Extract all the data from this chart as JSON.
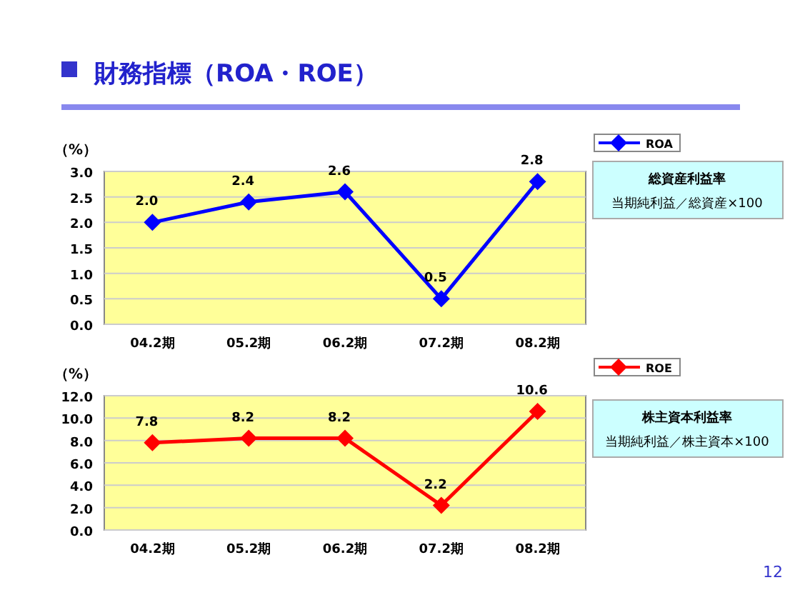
{
  "chart_data": [
    {
      "type": "line",
      "title": "財務指標（ROA・ROE）",
      "ylabel": "（%）",
      "categories": [
        "04.2期",
        "05.2期",
        "06.2期",
        "07.2期",
        "08.2期"
      ],
      "series": [
        {
          "name": "ROA",
          "color": "#0000ff",
          "values": [
            2.0,
            2.4,
            2.6,
            0.5,
            2.8
          ],
          "value_labels": [
            "2.0",
            "2.4",
            "2.6",
            "0.5",
            "2.8"
          ]
        }
      ],
      "ylim": [
        0,
        3
      ],
      "yticks": [
        {
          "value": 0,
          "label": "0.0"
        },
        {
          "value": 0.5,
          "label": "0.5"
        },
        {
          "value": 1,
          "label": "1.0"
        },
        {
          "value": 1.5,
          "label": "1.5"
        },
        {
          "value": 2,
          "label": "2.0"
        },
        {
          "value": 2.5,
          "label": "2.5"
        },
        {
          "value": 3,
          "label": "3.0"
        }
      ],
      "grid": "y",
      "legend": "top right",
      "marker": "diamond",
      "line_style": "solid",
      "annotations": [
        "総資産利益率",
        "当期純利益／総資産×100"
      ]
    },
    {
      "type": "line",
      "ylabel": "（%）",
      "categories": [
        "04.2期",
        "05.2期",
        "06.2期",
        "07.2期",
        "08.2期"
      ],
      "series": [
        {
          "name": "ROE",
          "color": "#ff0000",
          "values": [
            7.8,
            8.2,
            8.2,
            2.2,
            10.6
          ],
          "value_labels": [
            "7.8",
            "8.2",
            "8.2",
            "2.2",
            "10.6"
          ]
        }
      ],
      "ylim": [
        0,
        12
      ],
      "yticks": [
        {
          "value": 0,
          "label": "0.0"
        },
        {
          "value": 2,
          "label": "2.0"
        },
        {
          "value": 4,
          "label": "4.0"
        },
        {
          "value": 6,
          "label": "6.0"
        },
        {
          "value": 8,
          "label": "8.0"
        },
        {
          "value": 10,
          "label": "10.0"
        },
        {
          "value": 12,
          "label": "12.0"
        }
      ],
      "grid": "y",
      "legend": "top right",
      "marker": "diamond",
      "line_style": "solid",
      "annotations": [
        "株主資本利益率",
        "当期純利益／株主資本×100",
        "12"
      ]
    }
  ]
}
